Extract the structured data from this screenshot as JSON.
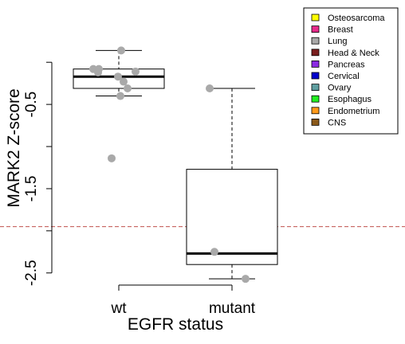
{
  "chart_data": {
    "type": "boxplot",
    "title": "",
    "xlabel": "EGFR status",
    "ylabel": "MARK2 Z-score",
    "categories": [
      "wt",
      "mutant"
    ],
    "y_ticks": [
      -0.5,
      -1.5,
      -2.5
    ],
    "y_tick_labels": [
      "-0.5",
      "-1.5",
      "-2.5"
    ],
    "ylim": [
      -2.54,
      0.55
    ],
    "boxes": [
      {
        "name": "wt",
        "whisker_low": -0.4,
        "q1": -0.31,
        "median": -0.17,
        "q3": -0.08,
        "whisker_high": 0.14
      },
      {
        "name": "mutant",
        "whisker_low": -2.57,
        "q1": -2.4,
        "median": -2.27,
        "q3": -1.27,
        "whisker_high": -0.31
      }
    ],
    "points": [
      {
        "group": "wt",
        "value": 0.14,
        "jitter": 0.03
      },
      {
        "group": "wt",
        "value": -0.08,
        "jitter": -0.32
      },
      {
        "group": "wt",
        "value": -0.08,
        "jitter": -0.25
      },
      {
        "group": "wt",
        "value": -0.12,
        "jitter": -0.26
      },
      {
        "group": "wt",
        "value": -0.11,
        "jitter": 0.21
      },
      {
        "group": "wt",
        "value": -0.17,
        "jitter": -0.01
      },
      {
        "group": "wt",
        "value": -0.23,
        "jitter": 0.06
      },
      {
        "group": "wt",
        "value": -0.31,
        "jitter": 0.11
      },
      {
        "group": "wt",
        "value": -0.4,
        "jitter": 0.02
      },
      {
        "group": "wt",
        "value": -1.14,
        "jitter": -0.09
      },
      {
        "group": "mutant",
        "value": -0.31,
        "jitter": -0.28
      },
      {
        "group": "mutant",
        "value": -2.25,
        "jitter": -0.22
      },
      {
        "group": "mutant",
        "value": -2.57,
        "jitter": 0.17
      }
    ],
    "reference_line": {
      "value": -1.95,
      "color": "#c0504d",
      "style": "dashed"
    },
    "point_color": "#a9a9a9",
    "legend": {
      "position": "top-right",
      "entries": [
        {
          "label": "Osteosarcoma",
          "color": "#ffff00"
        },
        {
          "label": "Breast",
          "color": "#e52b8a"
        },
        {
          "label": "Lung",
          "color": "#a9a9a9"
        },
        {
          "label": "Head & Neck",
          "color": "#7a1e1e"
        },
        {
          "label": "Pancreas",
          "color": "#8a2be2"
        },
        {
          "label": "Cervical",
          "color": "#0000cd"
        },
        {
          "label": "Ovary",
          "color": "#5f9ea0"
        },
        {
          "label": "Esophagus",
          "color": "#22ee22"
        },
        {
          "label": "Endometrium",
          "color": "#ff9a1a"
        },
        {
          "label": "CNS",
          "color": "#8b5a1a"
        }
      ]
    }
  }
}
